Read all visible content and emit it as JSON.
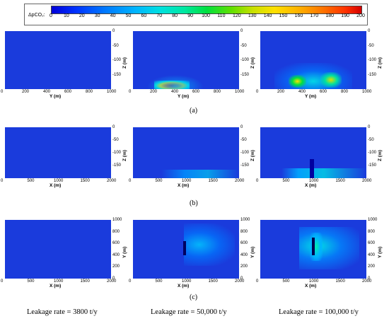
{
  "colorbar": {
    "label": "ΔpCO₂:",
    "ticks": [
      "0",
      "10",
      "20",
      "30",
      "40",
      "50",
      "60",
      "70",
      "80",
      "90",
      "100",
      "110",
      "120",
      "130",
      "140",
      "150",
      "160",
      "170",
      "180",
      "190",
      "200"
    ]
  },
  "rows": [
    {
      "label": "(a)",
      "x_title": "Y (m)",
      "x_ticks": [
        "0",
        "200",
        "400",
        "600",
        "800",
        "1000"
      ],
      "right_title": "Z (m)",
      "right_ticks": [
        "0",
        "-50",
        "-100",
        "-150"
      ]
    },
    {
      "label": "(b)",
      "x_title": "X (m)",
      "x_ticks": [
        "0",
        "500",
        "1000",
        "1500",
        "2000"
      ],
      "right_title": "Z (m)",
      "right_ticks": [
        "0",
        "-50",
        "-100",
        "-150"
      ]
    },
    {
      "label": "(c)",
      "x_title": "X (m)",
      "x_ticks": [
        "0",
        "500",
        "1000",
        "1500",
        "2000"
      ],
      "right_title": "Y (m)",
      "right_ticks": [
        "1000",
        "800",
        "600",
        "400",
        "200",
        "0"
      ]
    }
  ],
  "columns": [
    {
      "rate": "Leakage rate = 3800 t/y"
    },
    {
      "rate": "Leakage rate = 50,000 t/y"
    },
    {
      "rate": "Leakage rate = 100,000 t/y"
    }
  ]
}
